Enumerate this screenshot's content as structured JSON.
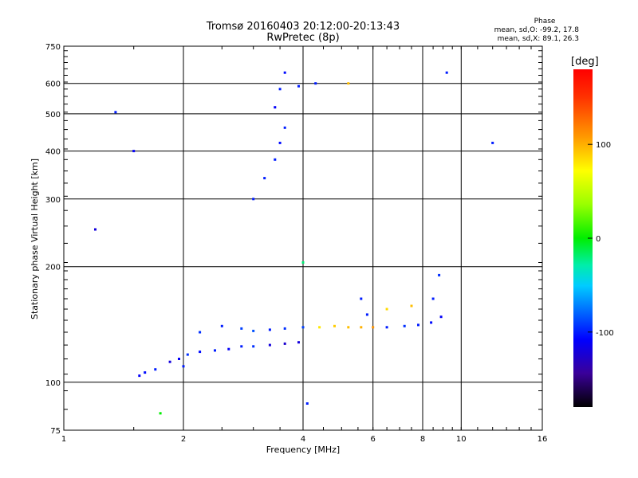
{
  "chart_data": {
    "type": "scatter",
    "title": "Tromsø 20160403 20:12:00-20:13:43",
    "subtitle": "RwPretec (8p)",
    "xlabel": "Frequency [MHz]",
    "ylabel": "Stationary phase Virtual Height [km]",
    "x_scale": "log",
    "y_scale": "log",
    "xlim": [
      1,
      16
    ],
    "ylim": [
      75,
      750
    ],
    "x_ticks": [
      1,
      2,
      4,
      6,
      8,
      10,
      16
    ],
    "x_tick_labels": [
      "1",
      "2",
      "4",
      "6",
      "8",
      "10",
      "16"
    ],
    "y_ticks": [
      75,
      100,
      200,
      300,
      400,
      500,
      600,
      750
    ],
    "y_tick_labels": [
      "75",
      "100",
      "200",
      "300",
      "400",
      "500",
      "600",
      "750"
    ],
    "x_gridlines": [
      2,
      4,
      6,
      8,
      10
    ],
    "y_gridlines": [
      100,
      200,
      300,
      400,
      500,
      600
    ],
    "grid": true,
    "phase_info": {
      "heading": "Phase",
      "line_o": "mean, sd,O: -99.2, 17.8",
      "line_x": "mean, sd,X: 89.1, 26.3"
    },
    "colorbar": {
      "unit": "[deg]",
      "range": [
        -180,
        180
      ],
      "tick_values": [
        100,
        0,
        -100
      ],
      "tick_labels": [
        "100",
        "0",
        "-100"
      ]
    },
    "series": [
      {
        "color_note": "phase-coded (blue ≈ -100 deg O-mode, yellow/orange ≈ +90 deg X-mode)",
        "points": [
          {
            "x": 1.55,
            "y": 104,
            "phase": -110
          },
          {
            "x": 1.6,
            "y": 106,
            "phase": -105
          },
          {
            "x": 1.7,
            "y": 108,
            "phase": -100
          },
          {
            "x": 1.85,
            "y": 113,
            "phase": -120
          },
          {
            "x": 1.95,
            "y": 115,
            "phase": -110
          },
          {
            "x": 2.0,
            "y": 110,
            "phase": -100
          },
          {
            "x": 2.05,
            "y": 118,
            "phase": -95
          },
          {
            "x": 2.2,
            "y": 120,
            "phase": -105
          },
          {
            "x": 2.4,
            "y": 121,
            "phase": -100
          },
          {
            "x": 2.6,
            "y": 122,
            "phase": -110
          },
          {
            "x": 2.8,
            "y": 124,
            "phase": -100
          },
          {
            "x": 3.0,
            "y": 124,
            "phase": -95
          },
          {
            "x": 3.3,
            "y": 125,
            "phase": -120
          },
          {
            "x": 3.6,
            "y": 126,
            "phase": -125
          },
          {
            "x": 3.9,
            "y": 127,
            "phase": -120
          },
          {
            "x": 2.2,
            "y": 135,
            "phase": -95
          },
          {
            "x": 2.5,
            "y": 140,
            "phase": -100
          },
          {
            "x": 2.8,
            "y": 138,
            "phase": -90
          },
          {
            "x": 3.0,
            "y": 136,
            "phase": -85
          },
          {
            "x": 3.3,
            "y": 137,
            "phase": -100
          },
          {
            "x": 3.6,
            "y": 138,
            "phase": -95
          },
          {
            "x": 4.0,
            "y": 139,
            "phase": -90
          },
          {
            "x": 4.4,
            "y": 139,
            "phase": 80
          },
          {
            "x": 4.8,
            "y": 140,
            "phase": 90
          },
          {
            "x": 5.2,
            "y": 139,
            "phase": 95
          },
          {
            "x": 5.6,
            "y": 139,
            "phase": 100
          },
          {
            "x": 6.0,
            "y": 139,
            "phase": 110
          },
          {
            "x": 6.5,
            "y": 139,
            "phase": -100
          },
          {
            "x": 7.2,
            "y": 140,
            "phase": -95
          },
          {
            "x": 7.8,
            "y": 141,
            "phase": -100
          },
          {
            "x": 8.4,
            "y": 143,
            "phase": -105
          },
          {
            "x": 8.9,
            "y": 148,
            "phase": -110
          },
          {
            "x": 5.6,
            "y": 165,
            "phase": -100
          },
          {
            "x": 5.8,
            "y": 150,
            "phase": -100
          },
          {
            "x": 6.5,
            "y": 155,
            "phase": 85
          },
          {
            "x": 7.5,
            "y": 158,
            "phase": 95
          },
          {
            "x": 8.5,
            "y": 165,
            "phase": -100
          },
          {
            "x": 8.8,
            "y": 190,
            "phase": -95
          },
          {
            "x": 4.0,
            "y": 205,
            "phase": -20
          },
          {
            "x": 3.0,
            "y": 300,
            "phase": -100
          },
          {
            "x": 3.2,
            "y": 340,
            "phase": -100
          },
          {
            "x": 3.4,
            "y": 380,
            "phase": -100
          },
          {
            "x": 3.5,
            "y": 420,
            "phase": -105
          },
          {
            "x": 3.6,
            "y": 460,
            "phase": -100
          },
          {
            "x": 3.4,
            "y": 520,
            "phase": -110
          },
          {
            "x": 3.5,
            "y": 580,
            "phase": -100
          },
          {
            "x": 3.6,
            "y": 640,
            "phase": -105
          },
          {
            "x": 3.9,
            "y": 590,
            "phase": -100
          },
          {
            "x": 4.3,
            "y": 600,
            "phase": -100
          },
          {
            "x": 5.2,
            "y": 600,
            "phase": 95
          },
          {
            "x": 9.2,
            "y": 640,
            "phase": -100
          },
          {
            "x": 1.35,
            "y": 505,
            "phase": -100
          },
          {
            "x": 1.5,
            "y": 400,
            "phase": -110
          },
          {
            "x": 1.2,
            "y": 250,
            "phase": -120
          },
          {
            "x": 12.0,
            "y": 420,
            "phase": -100
          },
          {
            "x": 1.75,
            "y": 83,
            "phase": 0
          },
          {
            "x": 4.1,
            "y": 88,
            "phase": -100
          }
        ]
      }
    ]
  }
}
